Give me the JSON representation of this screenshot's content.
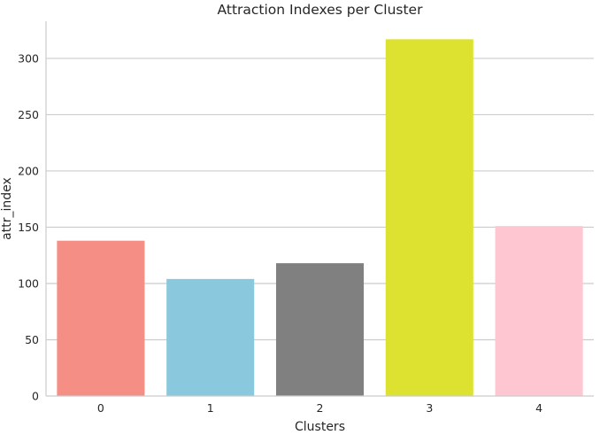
{
  "chart_data": {
    "type": "bar",
    "title": "Attraction Indexes per Cluster",
    "xlabel": "Clusters",
    "ylabel": "attr_index",
    "categories": [
      "0",
      "1",
      "2",
      "3",
      "4"
    ],
    "values": [
      138,
      104,
      118,
      317,
      151
    ],
    "colors": [
      "#f58e84",
      "#89c8dd",
      "#808080",
      "#dce22f",
      "#fec6d1"
    ],
    "yticks": [
      0,
      50,
      100,
      150,
      200,
      250,
      300
    ],
    "ylim": [
      0,
      333
    ],
    "grid": "horizontal"
  }
}
